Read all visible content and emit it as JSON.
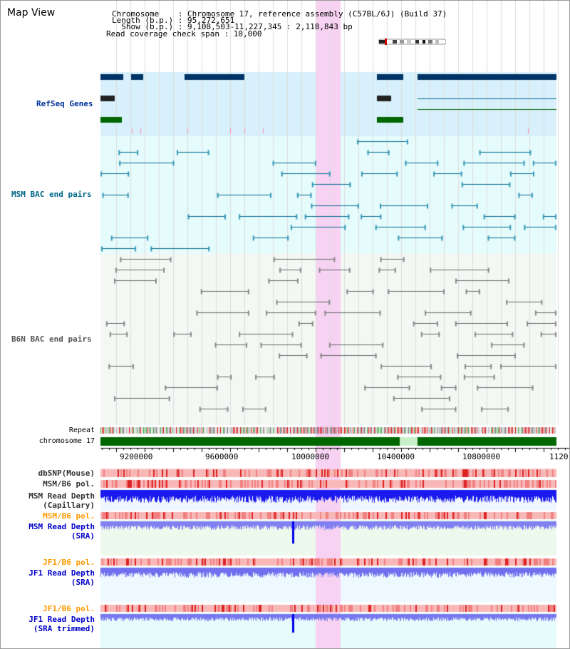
{
  "title": "Map View",
  "info": {
    "line1": "Chromosome    : Chromosome 17, reference assembly (C57BL/6J) (Build 37)",
    "line2": "Length (b.p.) : 95,272,651",
    "line3": "  Show (b.p.) : 9,108,503-11,227,345 : 2,118,843 bp",
    "line4": "Read coverage check span : 10,000"
  },
  "tracks": {
    "refseq": "RefSeq Genes",
    "msm_bac": "MSM BAC end pairs",
    "b6n_bac": "B6N BAC end pairs",
    "repeat": "Repeat",
    "chromosome": "chromosome 17",
    "dbsnp": "dbSNP(Mouse)",
    "msm_b6_pol_1": "MSM/B6 pol.",
    "msm_read_depth_cap_1": "MSM Read Depth",
    "msm_read_depth_cap_2": "(Capillary)",
    "msm_b6_pol_2": "MSM/B6 pol.",
    "msm_read_depth_sra_1": "MSM Read Depth",
    "msm_read_depth_sra_2": "(SRA)",
    "jf1_b6_pol_1": "JF1/B6 pol.",
    "jf1_read_depth_sra_1": "JF1 Read Depth",
    "jf1_read_depth_sra_2": "(SRA)",
    "jf1_b6_pol_2": "JF1/B6 pol.",
    "jf1_read_depth_trim_1": "JF1 Read Depth",
    "jf1_read_depth_trim_2": "(SRA trimmed)"
  },
  "axis": {
    "ticks": [
      "9200000",
      "9600000",
      "10000000",
      "10400000",
      "10800000",
      "1120"
    ]
  },
  "colors": {
    "navy": "#003366",
    "teal": "#006b8f",
    "genelabel_blue": "#0033aa",
    "orange_label": "#ff9900",
    "depth_blue": "#0000ee",
    "highlight": "#f7d2f2",
    "chromosome_green": "#006600"
  }
}
